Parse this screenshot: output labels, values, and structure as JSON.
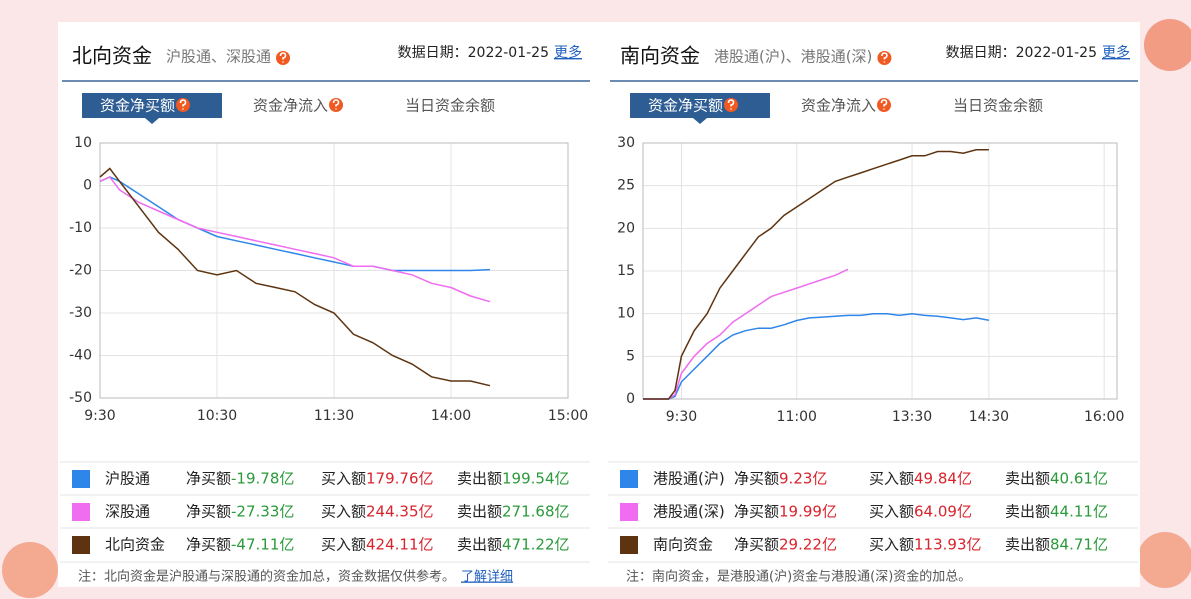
{
  "chart_data": [
    {
      "type": "line",
      "xlim": [
        0,
        240
      ],
      "ylim": [
        -50,
        10
      ],
      "yticks": [
        -50,
        -40,
        -30,
        -20,
        -10,
        0,
        10
      ],
      "xticks": [
        {
          "value": 0,
          "label": "9:30"
        },
        {
          "value": 60,
          "label": "10:30"
        },
        {
          "value": 120,
          "label": "11:30"
        },
        {
          "value": 180,
          "label": "14:00"
        },
        {
          "value": 240,
          "label": "15:00"
        }
      ],
      "grid": true,
      "x": [
        0,
        5,
        10,
        20,
        30,
        40,
        50,
        60,
        70,
        80,
        90,
        100,
        110,
        120,
        130,
        140,
        150,
        160,
        170,
        180,
        190,
        200
      ],
      "series": [
        {
          "name": "沪股通",
          "color": "#2f86ea",
          "values": [
            1,
            2,
            1,
            -2,
            -5,
            -8,
            -10,
            -12,
            -13,
            -14,
            -15,
            -16,
            -17,
            -18,
            -19,
            -19,
            -20,
            -20,
            -20,
            -20,
            -20,
            -19.78
          ]
        },
        {
          "name": "深股通",
          "color": "#f06cf0",
          "values": [
            1,
            2,
            -1,
            -4,
            -6,
            -8,
            -10,
            -11,
            -12,
            -13,
            -14,
            -15,
            -16,
            -17,
            -19,
            -19,
            -20,
            -21,
            -23,
            -24,
            -26,
            -27.33
          ]
        },
        {
          "name": "北向资金",
          "color": "#5e3410",
          "values": [
            2,
            4,
            1,
            -5,
            -11,
            -15,
            -20,
            -21,
            -20,
            -23,
            -24,
            -25,
            -28,
            -30,
            -35,
            -37,
            -40,
            -42,
            -45,
            -46,
            -46,
            -47.11
          ]
        }
      ]
    },
    {
      "type": "line",
      "xlim": [
        0,
        370
      ],
      "ylim": [
        0,
        30
      ],
      "yticks": [
        0,
        5,
        10,
        15,
        20,
        25,
        30
      ],
      "xticks": [
        {
          "value": 30,
          "label": "9:30"
        },
        {
          "value": 120,
          "label": "11:00"
        },
        {
          "value": 210,
          "label": "13:30"
        },
        {
          "value": 270,
          "label": "14:30"
        },
        {
          "value": 360,
          "label": "16:00"
        }
      ],
      "grid": true,
      "x": [
        0,
        20,
        25,
        30,
        40,
        50,
        60,
        70,
        80,
        90,
        100,
        110,
        120,
        130,
        140,
        150,
        160,
        170,
        180,
        190,
        200,
        210,
        220,
        230,
        240,
        250,
        260,
        270
      ],
      "series": [
        {
          "name": "港股通(沪)",
          "color": "#2f86ea",
          "values": [
            0,
            0,
            0.3,
            2,
            3.5,
            5,
            6.5,
            7.5,
            8,
            8.3,
            8.3,
            8.7,
            9.2,
            9.5,
            9.6,
            9.7,
            9.8,
            9.8,
            10,
            10,
            9.8,
            10,
            9.8,
            9.7,
            9.5,
            9.3,
            9.5,
            9.23
          ]
        },
        {
          "name": "港股通(深)",
          "color": "#f06cf0",
          "values": [
            0,
            0,
            0.5,
            3,
            5,
            6.5,
            7.5,
            9,
            10,
            11,
            12,
            12.5,
            13,
            13.5,
            14,
            14.5,
            15.2,
            null,
            null,
            null,
            null,
            null,
            null,
            null,
            null,
            null,
            null,
            null
          ]
        },
        {
          "name": "南向资金",
          "color": "#5e3410",
          "values": [
            0,
            0,
            1,
            5,
            8,
            10,
            13,
            15,
            17,
            19,
            20,
            21.5,
            22.5,
            23.5,
            24.5,
            25.5,
            26,
            26.5,
            27,
            27.5,
            28,
            28.5,
            28.5,
            29,
            29,
            28.8,
            29.2,
            29.22
          ]
        }
      ]
    }
  ],
  "panels": [
    {
      "title": "北向资金",
      "subtitle": "沪股通、深股通",
      "date": "数据日期：2022-01-25",
      "more": "更多",
      "tabs": [
        "资金净买额",
        "资金净流入",
        "当日资金余额"
      ],
      "table": {
        "labels": [
          "净买额",
          "买入额",
          "卖出额"
        ],
        "rows": [
          [
            "-19.78亿",
            "179.76亿",
            "199.54亿"
          ],
          [
            "-27.33亿",
            "244.35亿",
            "271.68亿"
          ],
          [
            "-47.11亿",
            "424.11亿",
            "471.22亿"
          ]
        ]
      },
      "note": "注：北向资金是沪股通与深股通的资金加总，资金数据仅供参考。",
      "link": "了解详细"
    },
    {
      "title": "南向资金",
      "subtitle": "港股通(沪)、港股通(深)",
      "date": "数据日期：2022-01-25",
      "more": "更多",
      "tabs": [
        "资金净买额",
        "资金净流入",
        "当日资金余额"
      ],
      "table": {
        "labels": [
          "净买额",
          "买入额",
          "卖出额"
        ],
        "rows": [
          [
            "9.23亿",
            "49.84亿",
            "40.61亿"
          ],
          [
            "19.99亿",
            "64.09亿",
            "44.11亿"
          ],
          [
            "29.22亿",
            "113.93亿",
            "84.71亿"
          ]
        ]
      },
      "note": "注：南向资金，是港股通(沪)资金与港股通(深)资金的加总。"
    }
  ]
}
